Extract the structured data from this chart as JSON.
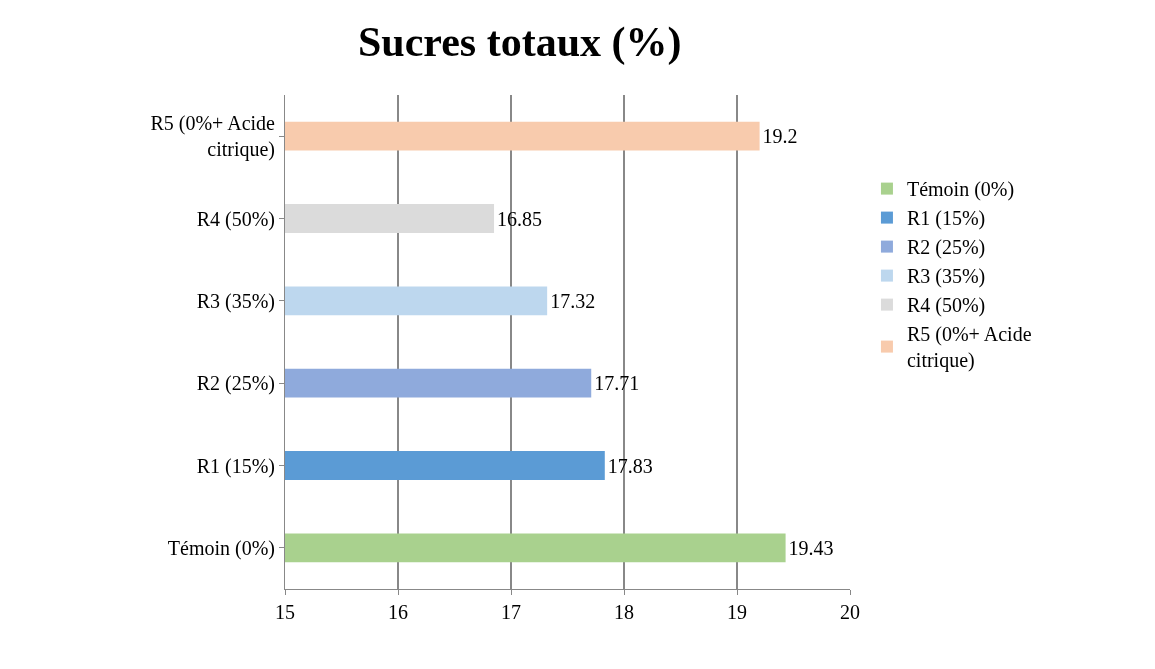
{
  "chart_data": {
    "type": "bar",
    "orientation": "horizontal",
    "title": "Sucres totaux (%)",
    "categories": [
      "R5 (0%+ Acide citrique)",
      "R4 (50%)",
      "R3 (35%)",
      "R2 (25%)",
      "R1 (15%)",
      "Témoin (0%)"
    ],
    "series": [
      {
        "name": "Témoin (0%)",
        "color": "#a9d18e",
        "values": [
          null,
          null,
          null,
          null,
          null,
          19.43
        ]
      },
      {
        "name": "R1 (15%)",
        "color": "#5b9bd5",
        "values": [
          null,
          null,
          null,
          null,
          17.83,
          null
        ]
      },
      {
        "name": "R2 (25%)",
        "color": "#8faadc",
        "values": [
          null,
          null,
          null,
          17.71,
          null,
          null
        ]
      },
      {
        "name": "R3 (35%)",
        "color": "#bdd7ee",
        "values": [
          null,
          null,
          17.32,
          null,
          null,
          null
        ]
      },
      {
        "name": "R4 (50%)",
        "color": "#dbdbdb",
        "values": [
          null,
          16.85,
          null,
          null,
          null,
          null
        ]
      },
      {
        "name": "R5 (0%+ Acide citrique)",
        "color": "#f8cbad",
        "values": [
          19.2,
          null,
          null,
          null,
          null,
          null
        ]
      }
    ],
    "xlim": [
      15,
      20
    ],
    "xticks": [
      15,
      16,
      17,
      18,
      19,
      20
    ],
    "grid": "x",
    "data_labels": true,
    "legend": "right"
  }
}
